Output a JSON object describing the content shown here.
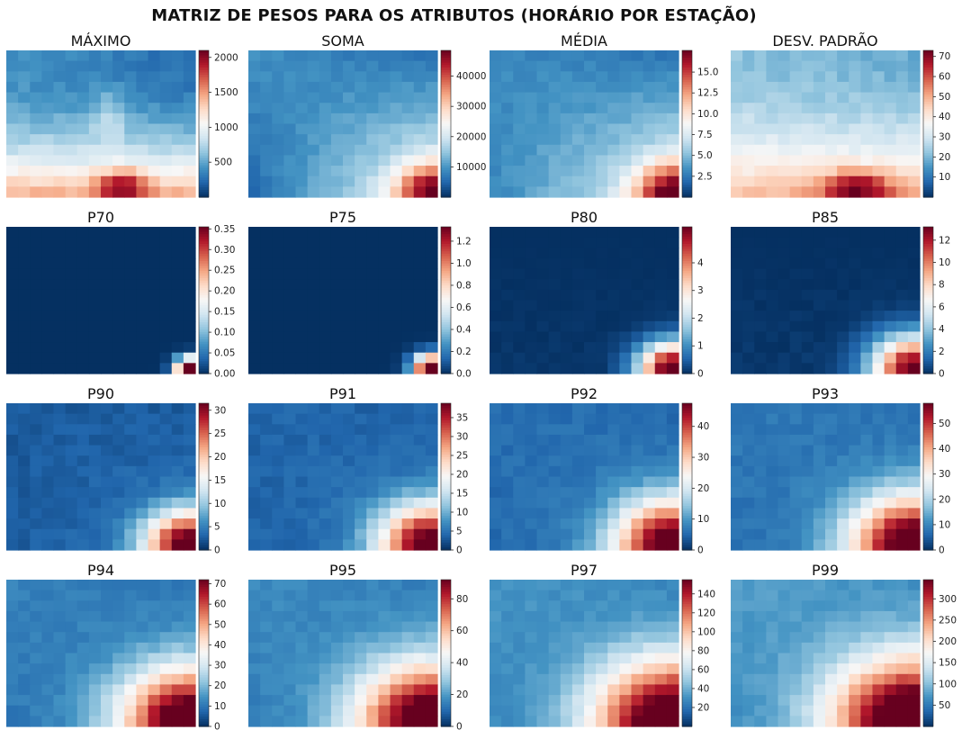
{
  "suptitle": "MATRIZ DE PESOS PARA OS ATRIBUTOS (HORÁRIO POR ESTAÇÃO)",
  "chart_data": [
    {
      "type": "heatmap",
      "title": "MÁXIMO",
      "vmin": 0,
      "vmax": 2100,
      "cbar_ticks": [
        {
          "v": 500,
          "t": "500"
        },
        {
          "v": 1000,
          "t": "1000"
        },
        {
          "v": 1500,
          "t": "1500"
        },
        {
          "v": 2000,
          "t": "2000"
        }
      ]
    },
    {
      "type": "heatmap",
      "title": "SOMA",
      "vmin": 0,
      "vmax": 48500,
      "cbar_ticks": [
        {
          "v": 10000,
          "t": "10000"
        },
        {
          "v": 20000,
          "t": "20000"
        },
        {
          "v": 30000,
          "t": "30000"
        },
        {
          "v": 40000,
          "t": "40000"
        }
      ]
    },
    {
      "type": "heatmap",
      "title": "MÉDIA",
      "vmin": 0,
      "vmax": 17.6,
      "cbar_ticks": [
        {
          "v": 2.5,
          "t": "2.5"
        },
        {
          "v": 5,
          "t": "5.0"
        },
        {
          "v": 7.5,
          "t": "7.5"
        },
        {
          "v": 10,
          "t": "10.0"
        },
        {
          "v": 12.5,
          "t": "12.5"
        },
        {
          "v": 15,
          "t": "15.0"
        }
      ]
    },
    {
      "type": "heatmap",
      "title": "DESV. PADRÃO",
      "vmin": 0,
      "vmax": 73,
      "cbar_ticks": [
        {
          "v": 10,
          "t": "10"
        },
        {
          "v": 20,
          "t": "20"
        },
        {
          "v": 30,
          "t": "30"
        },
        {
          "v": 40,
          "t": "40"
        },
        {
          "v": 50,
          "t": "50"
        },
        {
          "v": 60,
          "t": "60"
        },
        {
          "v": 70,
          "t": "70"
        }
      ]
    },
    {
      "type": "heatmap",
      "title": "P70",
      "vmin": 0,
      "vmax": 0.355,
      "cbar_ticks": [
        {
          "v": 0,
          "t": "0.00"
        },
        {
          "v": 0.05,
          "t": "0.05"
        },
        {
          "v": 0.1,
          "t": "0.10"
        },
        {
          "v": 0.15,
          "t": "0.15"
        },
        {
          "v": 0.2,
          "t": "0.20"
        },
        {
          "v": 0.25,
          "t": "0.25"
        },
        {
          "v": 0.3,
          "t": "0.30"
        },
        {
          "v": 0.35,
          "t": "0.35"
        }
      ]
    },
    {
      "type": "heatmap",
      "title": "P75",
      "vmin": 0,
      "vmax": 1.33,
      "cbar_ticks": [
        {
          "v": 0,
          "t": "0.0"
        },
        {
          "v": 0.2,
          "t": "0.2"
        },
        {
          "v": 0.4,
          "t": "0.4"
        },
        {
          "v": 0.6,
          "t": "0.6"
        },
        {
          "v": 0.8,
          "t": "0.8"
        },
        {
          "v": 1,
          "t": "1.0"
        },
        {
          "v": 1.2,
          "t": "1.2"
        }
      ]
    },
    {
      "type": "heatmap",
      "title": "P80",
      "vmin": 0,
      "vmax": 5.3,
      "cbar_ticks": [
        {
          "v": 0,
          "t": "0"
        },
        {
          "v": 1,
          "t": "1"
        },
        {
          "v": 2,
          "t": "2"
        },
        {
          "v": 3,
          "t": "3"
        },
        {
          "v": 4,
          "t": "4"
        }
      ]
    },
    {
      "type": "heatmap",
      "title": "P85",
      "vmin": 0,
      "vmax": 13.2,
      "cbar_ticks": [
        {
          "v": 0,
          "t": "0"
        },
        {
          "v": 2,
          "t": "2"
        },
        {
          "v": 4,
          "t": "4"
        },
        {
          "v": 6,
          "t": "6"
        },
        {
          "v": 8,
          "t": "8"
        },
        {
          "v": 10,
          "t": "10"
        },
        {
          "v": 12,
          "t": "12"
        }
      ]
    },
    {
      "type": "heatmap",
      "title": "P90",
      "vmin": 0,
      "vmax": 31.5,
      "cbar_ticks": [
        {
          "v": 0,
          "t": "0"
        },
        {
          "v": 5,
          "t": "5"
        },
        {
          "v": 10,
          "t": "10"
        },
        {
          "v": 15,
          "t": "15"
        },
        {
          "v": 20,
          "t": "20"
        },
        {
          "v": 25,
          "t": "25"
        },
        {
          "v": 30,
          "t": "30"
        }
      ]
    },
    {
      "type": "heatmap",
      "title": "P91",
      "vmin": 0,
      "vmax": 38.8,
      "cbar_ticks": [
        {
          "v": 0,
          "t": "0"
        },
        {
          "v": 5,
          "t": "5"
        },
        {
          "v": 10,
          "t": "10"
        },
        {
          "v": 15,
          "t": "15"
        },
        {
          "v": 20,
          "t": "20"
        },
        {
          "v": 25,
          "t": "25"
        },
        {
          "v": 30,
          "t": "30"
        },
        {
          "v": 35,
          "t": "35"
        }
      ]
    },
    {
      "type": "heatmap",
      "title": "P92",
      "vmin": 0,
      "vmax": 47.5,
      "cbar_ticks": [
        {
          "v": 0,
          "t": "0"
        },
        {
          "v": 10,
          "t": "10"
        },
        {
          "v": 20,
          "t": "20"
        },
        {
          "v": 30,
          "t": "30"
        },
        {
          "v": 40,
          "t": "40"
        }
      ]
    },
    {
      "type": "heatmap",
      "title": "P93",
      "vmin": 0,
      "vmax": 58,
      "cbar_ticks": [
        {
          "v": 0,
          "t": "0"
        },
        {
          "v": 10,
          "t": "10"
        },
        {
          "v": 20,
          "t": "20"
        },
        {
          "v": 30,
          "t": "30"
        },
        {
          "v": 40,
          "t": "40"
        },
        {
          "v": 50,
          "t": "50"
        }
      ]
    },
    {
      "type": "heatmap",
      "title": "P94",
      "vmin": 0,
      "vmax": 72,
      "cbar_ticks": [
        {
          "v": 0,
          "t": "0"
        },
        {
          "v": 10,
          "t": "10"
        },
        {
          "v": 20,
          "t": "20"
        },
        {
          "v": 30,
          "t": "30"
        },
        {
          "v": 40,
          "t": "40"
        },
        {
          "v": 50,
          "t": "50"
        },
        {
          "v": 60,
          "t": "60"
        },
        {
          "v": 70,
          "t": "70"
        }
      ]
    },
    {
      "type": "heatmap",
      "title": "P95",
      "vmin": 0,
      "vmax": 92,
      "cbar_ticks": [
        {
          "v": 0,
          "t": "0"
        },
        {
          "v": 20,
          "t": "20"
        },
        {
          "v": 40,
          "t": "40"
        },
        {
          "v": 60,
          "t": "60"
        },
        {
          "v": 80,
          "t": "80"
        }
      ]
    },
    {
      "type": "heatmap",
      "title": "P97",
      "vmin": 0,
      "vmax": 155,
      "cbar_ticks": [
        {
          "v": 20,
          "t": "20"
        },
        {
          "v": 40,
          "t": "40"
        },
        {
          "v": 60,
          "t": "60"
        },
        {
          "v": 80,
          "t": "80"
        },
        {
          "v": 100,
          "t": "100"
        },
        {
          "v": 120,
          "t": "120"
        },
        {
          "v": 140,
          "t": "140"
        }
      ]
    },
    {
      "type": "heatmap",
      "title": "P99",
      "vmin": 0,
      "vmax": 345,
      "cbar_ticks": [
        {
          "v": 50,
          "t": "50"
        },
        {
          "v": 100,
          "t": "100"
        },
        {
          "v": 150,
          "t": "150"
        },
        {
          "v": 200,
          "t": "200"
        },
        {
          "v": 250,
          "t": "250"
        },
        {
          "v": 300,
          "t": "300"
        }
      ]
    }
  ]
}
